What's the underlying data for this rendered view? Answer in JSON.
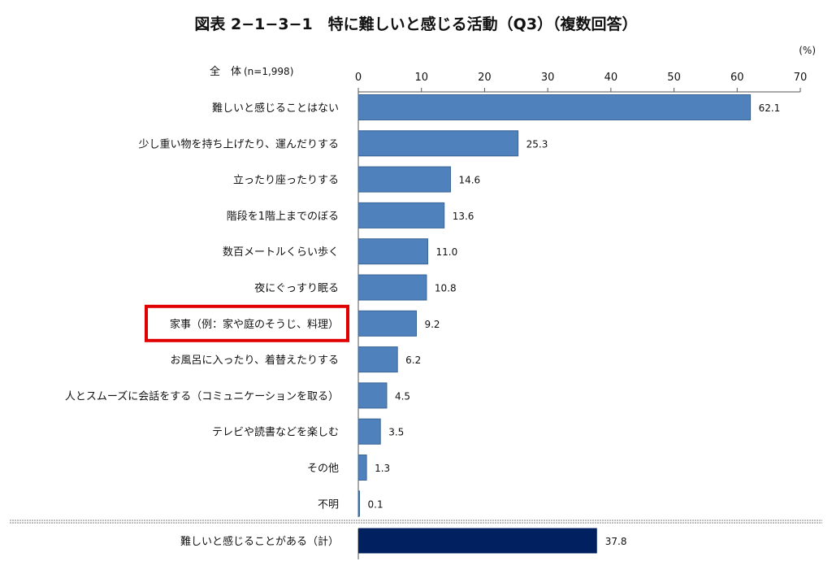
{
  "chart_data": {
    "type": "bar",
    "orientation": "horizontal",
    "title": "図表 2−1−3−1　特に難しいと感じる活動（Q3）（複数回答）",
    "group_label": "全　体",
    "sample_size": "(n=1,998)",
    "unit": "(%)",
    "xlim": [
      0,
      70
    ],
    "ticks": [
      0,
      10,
      20,
      30,
      40,
      50,
      60,
      70
    ],
    "grid": false,
    "categories": [
      "難しいと感じることはない",
      "少し重い物を持ち上げたり、運んだりする",
      "立ったり座ったりする",
      "階段を1階上までのぼる",
      "数百メートルくらい歩く",
      "夜にぐっすり眠る",
      "家事（例：家や庭のそうじ、料理）",
      "お風呂に入ったり、着替えたりする",
      "人とスムーズに会話をする（コミュニケーションを取る）",
      "テレビや読書などを楽しむ",
      "その他",
      "不明"
    ],
    "values": [
      62.1,
      25.3,
      14.6,
      13.6,
      11.0,
      10.8,
      9.2,
      6.2,
      4.5,
      3.5,
      1.3,
      0.1
    ],
    "value_labels": [
      "62.1",
      "25.3",
      "14.6",
      "13.6",
      "11.0",
      "10.8",
      "9.2",
      "6.2",
      "4.5",
      "3.5",
      "1.3",
      "0.1"
    ],
    "highlighted_category": "家事（例：家や庭のそうじ、料理）",
    "total": {
      "category": "難しいと感じることがある（計）",
      "value": 37.8,
      "value_label": "37.8"
    },
    "colors": {
      "bar": "#4f81bd",
      "bar_border": "#3a6595",
      "total_bar": "#002060",
      "highlight_box": "#e00000",
      "separator": "#7f7f7f",
      "text": "#111111"
    }
  }
}
